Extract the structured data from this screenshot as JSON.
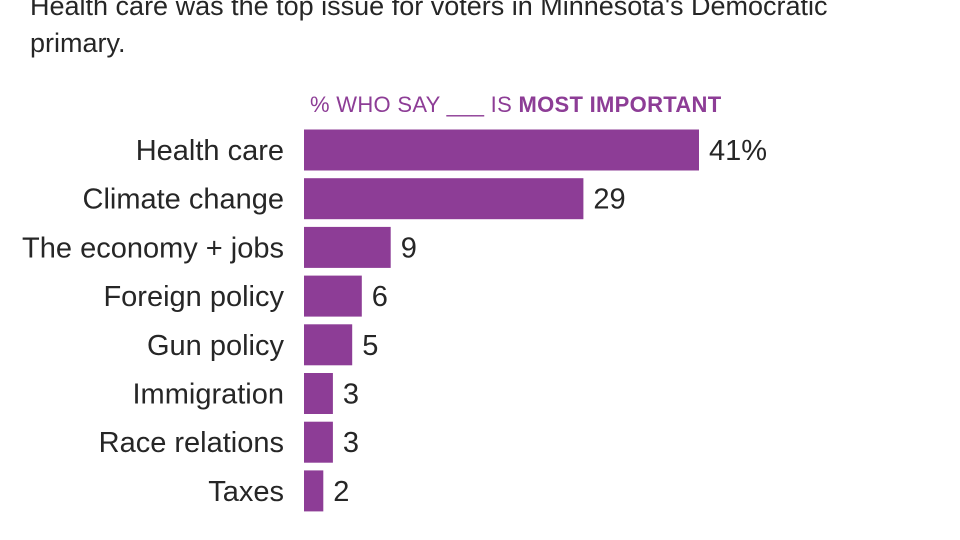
{
  "headline": "Health care was the top issue for voters in Minnesota's Democratic primary.",
  "subhead": {
    "prefix": "% WHO SAY ___ IS ",
    "emphasis": "MOST IMPORTANT"
  },
  "colors": {
    "bar": "#8d3d96",
    "text": "#262626"
  },
  "chart_data": {
    "type": "bar",
    "orientation": "horizontal",
    "title": "% WHO SAY ___ IS MOST IMPORTANT",
    "categories": [
      "Health care",
      "Climate change",
      "The economy + jobs",
      "Foreign policy",
      "Gun policy",
      "Immigration",
      "Race relations",
      "Taxes"
    ],
    "values": [
      41,
      29,
      9,
      6,
      5,
      3,
      3,
      2
    ],
    "value_labels": [
      "41%",
      "29",
      "9",
      "6",
      "5",
      "3",
      "3",
      "2"
    ],
    "xlim": [
      0,
      41
    ],
    "grid": false,
    "legend": "none"
  }
}
